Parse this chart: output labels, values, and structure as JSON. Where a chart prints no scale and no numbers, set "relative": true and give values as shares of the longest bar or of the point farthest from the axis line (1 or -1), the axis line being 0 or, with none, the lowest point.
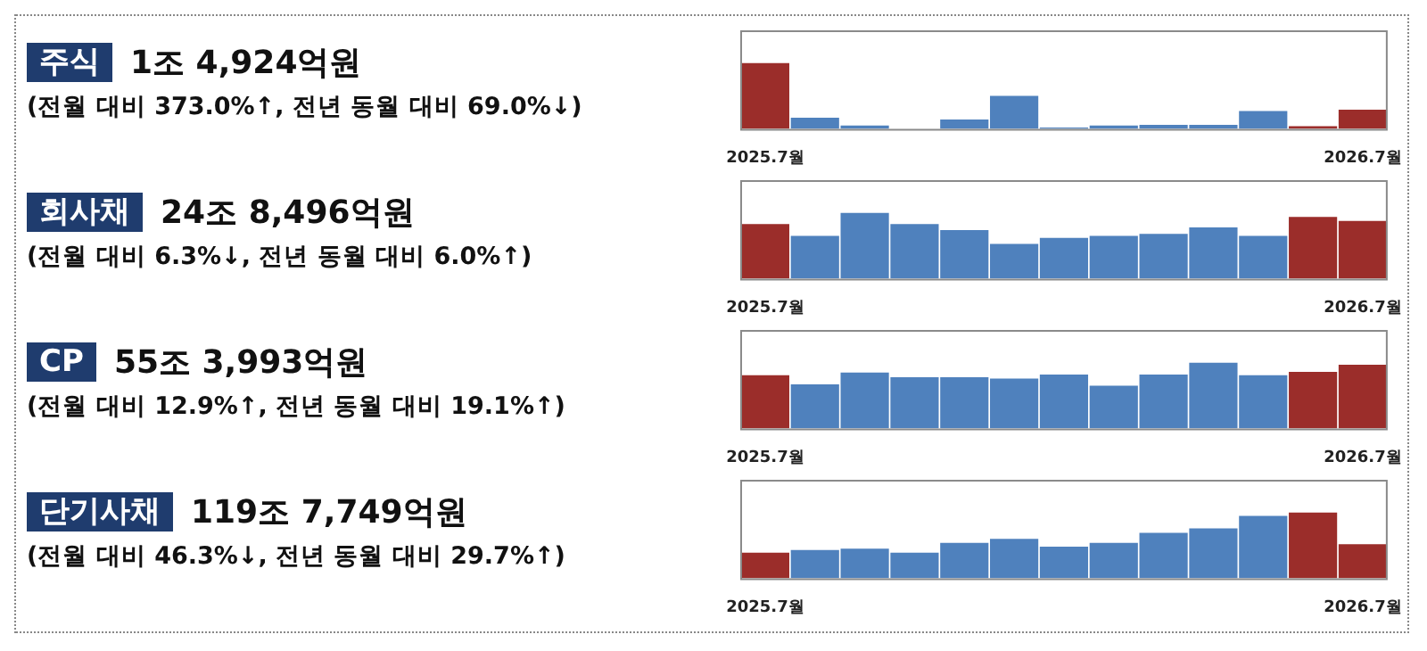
{
  "chart_data": [
    {
      "type": "bar",
      "relative": true,
      "annotations": [
        "주식",
        "1조 4,924억원",
        "(전월 대비 373.0%↑, 전년 동월 대비 69.0%↓)"
      ],
      "categories": [
        "2025.7월",
        null,
        null,
        null,
        null,
        null,
        null,
        null,
        null,
        null,
        null,
        null,
        "2026.7월"
      ],
      "values": [
        1,
        0.17,
        0.05,
        0,
        0.14,
        0.5,
        0.02,
        0.05,
        0.06,
        0.06,
        0.27,
        0.04,
        0.29
      ],
      "colors": [
        "#9b2d2a",
        "#4f81bd",
        "#4f81bd",
        "#4f81bd",
        "#4f81bd",
        "#4f81bd",
        "#4f81bd",
        "#4f81bd",
        "#4f81bd",
        "#4f81bd",
        "#4f81bd",
        "#9b2d2a",
        "#9b2d2a"
      ]
    },
    {
      "type": "bar",
      "relative": true,
      "annotations": [
        "회사채",
        "24조 8,496억원",
        "(전월 대비 6.3%↓, 전년 동월 대비 6.0%↑)"
      ],
      "categories": [
        "2025.7월",
        null,
        null,
        null,
        null,
        null,
        null,
        null,
        null,
        null,
        null,
        null,
        "2026.7월"
      ],
      "values": [
        0.83,
        0.65,
        1,
        0.83,
        0.74,
        0.53,
        0.62,
        0.65,
        0.68,
        0.78,
        0.65,
        0.94,
        0.88
      ],
      "colors": [
        "#9b2d2a",
        "#4f81bd",
        "#4f81bd",
        "#4f81bd",
        "#4f81bd",
        "#4f81bd",
        "#4f81bd",
        "#4f81bd",
        "#4f81bd",
        "#4f81bd",
        "#4f81bd",
        "#9b2d2a",
        "#9b2d2a"
      ]
    },
    {
      "type": "bar",
      "relative": true,
      "annotations": [
        "CP",
        "55조 3,993억원",
        "(전월 대비 12.9%↑, 전년 동월 대비 19.1%↑)"
      ],
      "categories": [
        "2025.7월",
        null,
        null,
        null,
        null,
        null,
        null,
        null,
        null,
        null,
        null,
        null,
        "2026.7월"
      ],
      "values": [
        0.81,
        0.67,
        0.85,
        0.78,
        0.78,
        0.76,
        0.82,
        0.65,
        0.82,
        1,
        0.81,
        0.86,
        0.97
      ],
      "colors": [
        "#9b2d2a",
        "#4f81bd",
        "#4f81bd",
        "#4f81bd",
        "#4f81bd",
        "#4f81bd",
        "#4f81bd",
        "#4f81bd",
        "#4f81bd",
        "#4f81bd",
        "#4f81bd",
        "#9b2d2a",
        "#9b2d2a"
      ]
    },
    {
      "type": "bar",
      "relative": true,
      "annotations": [
        "단기사채",
        "119조 7,749억원",
        "(전월 대비 46.3%↓, 전년 동월 대비 29.7%↑)"
      ],
      "categories": [
        "2025.7월",
        null,
        null,
        null,
        null,
        null,
        null,
        null,
        null,
        null,
        null,
        null,
        "2026.7월"
      ],
      "values": [
        0.39,
        0.43,
        0.45,
        0.39,
        0.54,
        0.6,
        0.48,
        0.54,
        0.69,
        0.76,
        0.95,
        1,
        0.52
      ],
      "colors": [
        "#9b2d2a",
        "#4f81bd",
        "#4f81bd",
        "#4f81bd",
        "#4f81bd",
        "#4f81bd",
        "#4f81bd",
        "#4f81bd",
        "#4f81bd",
        "#4f81bd",
        "#4f81bd",
        "#9b2d2a",
        "#9b2d2a"
      ]
    }
  ]
}
